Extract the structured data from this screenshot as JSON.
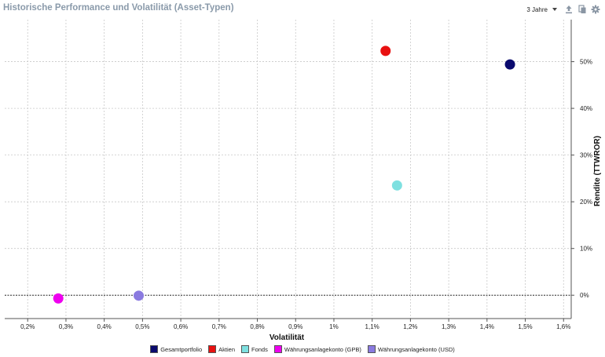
{
  "header": {
    "title": "Historische Performance und Volatilität (Asset-Typen)",
    "period_label": "3 Jahre",
    "icons": [
      "export-icon",
      "copy-icon",
      "gear-icon"
    ]
  },
  "chart_data": {
    "type": "scatter",
    "xlabel": "Volatilität",
    "ylabel": "Rendite (TTWROR)",
    "xlim": [
      0.14,
      1.62
    ],
    "ylim": [
      -5,
      59
    ],
    "x_ticks": [
      0.2,
      0.3,
      0.4,
      0.5,
      0.6,
      0.7,
      0.8,
      0.9,
      1.0,
      1.1,
      1.2,
      1.3,
      1.4,
      1.5,
      1.6
    ],
    "x_tick_labels": [
      "0,2%",
      "0,3%",
      "0,4%",
      "0,5%",
      "0,6%",
      "0,7%",
      "0,8%",
      "0,9%",
      "1%",
      "1,1%",
      "1,2%",
      "1,3%",
      "1,4%",
      "1,5%",
      "1,6%"
    ],
    "y_ticks": [
      0,
      10,
      20,
      30,
      40,
      50
    ],
    "y_tick_labels": [
      "0%",
      "10%",
      "20%",
      "30%",
      "40%",
      "50%"
    ],
    "grid": true,
    "y_axis_side": "right",
    "zero_line": true,
    "legend_position": "bottom",
    "series": [
      {
        "name": "Gesamtportfolio",
        "color": "#0a0a6e",
        "x": 1.46,
        "y": 49.4
      },
      {
        "name": "Aktien",
        "color": "#e81010",
        "x": 1.135,
        "y": 52.3
      },
      {
        "name": "Fonds",
        "color": "#7ee0e0",
        "x": 1.165,
        "y": 23.5
      },
      {
        "name": "Währungsanlagekonto (GPB)",
        "color": "#ee00ee",
        "x": 0.28,
        "y": -0.7
      },
      {
        "name": "Währungsanlagekonto (USD)",
        "color": "#8a7ae0",
        "x": 0.49,
        "y": -0.1
      }
    ]
  }
}
